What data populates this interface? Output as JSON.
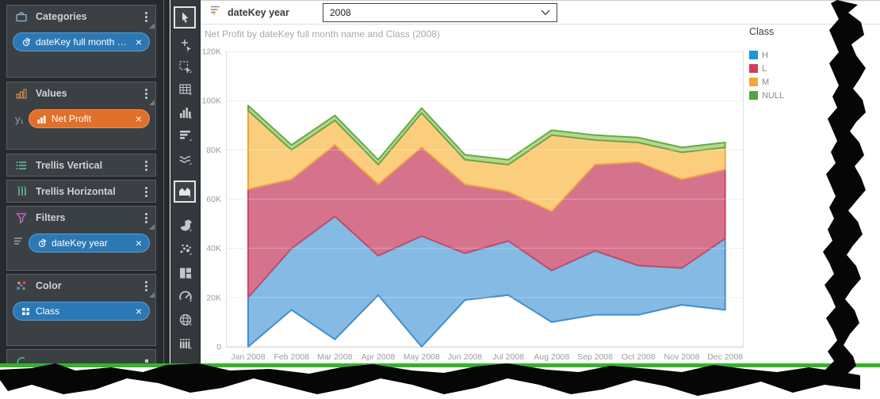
{
  "filter_bar": {
    "label": "dateKey year",
    "value": "2008"
  },
  "chart_title": "Net Profit by dateKey full month name and Class (2008)",
  "legend": {
    "title": "Class",
    "items": [
      {
        "label": "H",
        "color": "#1f95d4"
      },
      {
        "label": "L",
        "color": "#d63a5e"
      },
      {
        "label": "M",
        "color": "#f2a83c"
      },
      {
        "label": "NULL",
        "color": "#55a344"
      }
    ]
  },
  "chart_data": {
    "type": "area",
    "variant": "overlapping-bands",
    "title": "Net Profit by dateKey full month name and Class (2008)",
    "x_field": "dateKey full month name",
    "color_field": "Class",
    "y_unit": "thousands",
    "y_max_k": 120,
    "y_tick_labels": [
      "0",
      "20K",
      "40K",
      "60K",
      "80K",
      "100K",
      "120K"
    ],
    "grid": true,
    "legend_position": "right",
    "categories": [
      "Jan 2008",
      "Feb 2008",
      "Mar 2008",
      "Apr 2008",
      "May 2008",
      "Jun 2008",
      "Jul 2008",
      "Aug 2008",
      "Sep 2008",
      "Oct 2008",
      "Nov 2008",
      "Dec 2008"
    ],
    "series": [
      {
        "name": "H",
        "legend_color": "#1f95d4",
        "fill": "#84bae3",
        "stroke": "#3e90d1",
        "band_lower_k": [
          0,
          15,
          3,
          21,
          0,
          19,
          21,
          10,
          13,
          13,
          17,
          15
        ],
        "band_upper_k": [
          20,
          40,
          53,
          37,
          45,
          38,
          43,
          31,
          39,
          33,
          32,
          44
        ]
      },
      {
        "name": "L",
        "legend_color": "#d63a5e",
        "fill": "#d5738d",
        "stroke": "#c9486a",
        "band_lower_k": [
          20,
          40,
          53,
          37,
          45,
          38,
          43,
          31,
          39,
          33,
          32,
          44
        ],
        "band_upper_k": [
          64,
          68,
          82,
          66,
          81,
          66,
          63,
          55,
          74,
          75,
          68,
          72
        ]
      },
      {
        "name": "M",
        "legend_color": "#f2a83c",
        "fill": "#fbce7d",
        "stroke": "#eca63f",
        "band_lower_k": [
          64,
          68,
          82,
          66,
          81,
          66,
          63,
          55,
          74,
          75,
          68,
          72
        ],
        "band_upper_k": [
          96,
          80,
          92,
          74,
          95,
          76,
          74,
          86,
          84,
          83,
          79,
          81
        ]
      },
      {
        "name": "NULL",
        "legend_color": "#55a344",
        "fill": "#b4d88c",
        "stroke": "#67a84c",
        "band_lower_k": [
          96,
          80,
          92,
          74,
          95,
          76,
          74,
          86,
          84,
          83,
          79,
          81
        ],
        "band_upper_k": [
          98,
          82,
          94,
          76,
          97,
          78,
          76,
          88,
          86,
          85,
          81,
          83
        ]
      }
    ]
  },
  "sidebar": {
    "panels": [
      {
        "title": "Categories",
        "icon": "briefcase-icon",
        "rows": [
          {
            "chip": {
              "label": "dateKey full month na...",
              "style": "blue",
              "icon": "date-hierarchy-icon"
            }
          }
        ]
      },
      {
        "title": "Values",
        "icon": "mini-bars-icon",
        "rows": [
          {
            "prefix": "y₁",
            "chip": {
              "label": "Net Profit",
              "style": "orange",
              "icon": "bar-chart-icon"
            }
          }
        ]
      },
      {
        "title": "Trellis Vertical",
        "icon": "trellis-vertical-icon",
        "rows": []
      },
      {
        "title": "Trellis Horizontal",
        "icon": "trellis-horizontal-icon",
        "rows": []
      },
      {
        "title": "Filters",
        "icon": "funnel-icon",
        "rows": [
          {
            "prefix_icon": "list-icon",
            "chip": {
              "label": "dateKey year",
              "style": "blue",
              "icon": "date-hierarchy-icon"
            }
          }
        ]
      },
      {
        "title": "Color",
        "icon": "color-dots-icon",
        "rows": [
          {
            "chip": {
              "label": "Class",
              "style": "blue",
              "icon": "grid-icon"
            }
          }
        ]
      },
      {
        "title": "",
        "icon": "arc-icon",
        "rows": [],
        "partial": true
      }
    ]
  },
  "toolbar": {
    "tools": [
      {
        "name": "pointer-tool",
        "selected": true
      },
      {
        "name": "point-select-tool",
        "selected": false
      },
      {
        "name": "marquee-select-tool",
        "selected": false
      },
      {
        "name": "grid-view-tool",
        "selected": false
      },
      {
        "name": "column-chart-tool",
        "selected": false
      },
      {
        "name": "bar-chart-tool",
        "selected": false
      },
      {
        "name": "line-chart-tool",
        "selected": false
      },
      {
        "name": "area-chart-tool",
        "selected": true
      },
      {
        "name": "pie-chart-tool",
        "selected": false
      },
      {
        "name": "scatter-chart-tool",
        "selected": false
      },
      {
        "name": "treemap-tool",
        "selected": false
      },
      {
        "name": "gauge-tool",
        "selected": false
      },
      {
        "name": "map-tool",
        "selected": false
      },
      {
        "name": "slicer-tool",
        "selected": false
      }
    ]
  },
  "colors": {
    "bottom_edge_green": "#35b32a",
    "chip_blue": "#2b78b5",
    "chip_orange": "#e0702a"
  }
}
